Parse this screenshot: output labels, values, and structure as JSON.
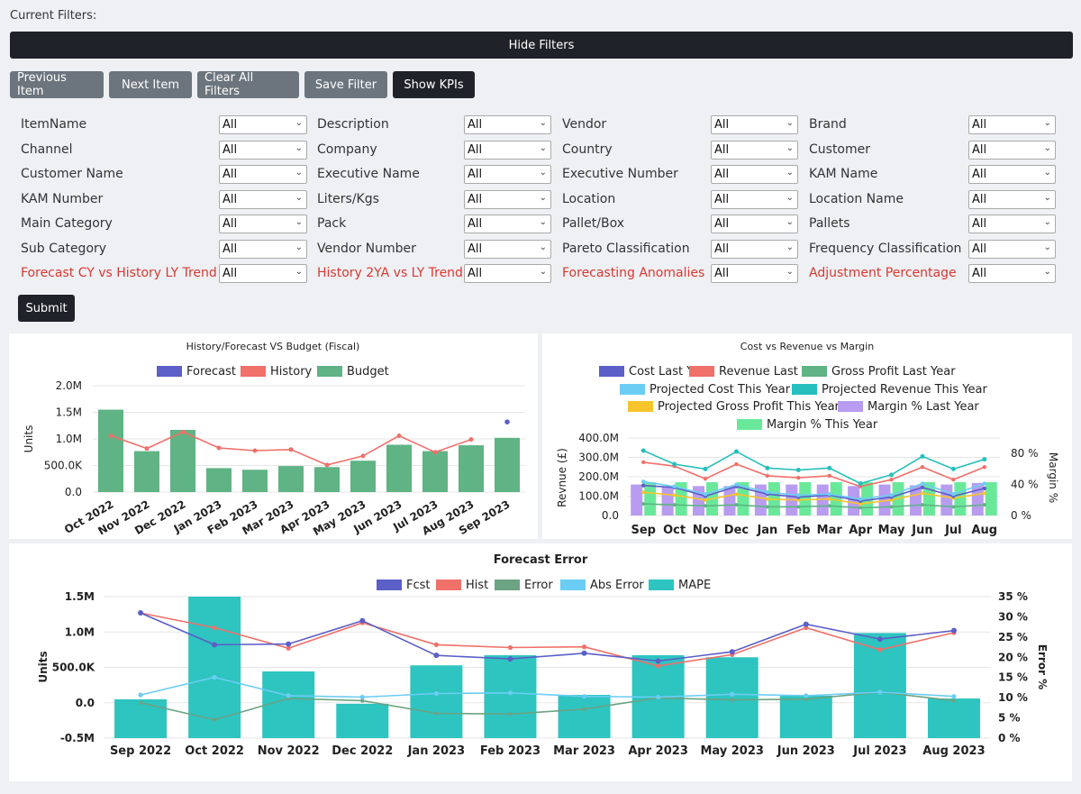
{
  "header": {
    "current_filters": "Current Filters:",
    "hide_filters": "Hide Filters"
  },
  "buttons": {
    "previous": "Previous Item",
    "next": "Next Item",
    "clear": "Clear All Filters",
    "save": "Save Filter",
    "kpis": "Show KPIs",
    "submit": "Submit"
  },
  "filters": [
    {
      "label": "ItemName",
      "value": "All",
      "highlight": false
    },
    {
      "label": "Description",
      "value": "All",
      "highlight": false
    },
    {
      "label": "Vendor",
      "value": "All",
      "highlight": false
    },
    {
      "label": "Brand",
      "value": "All",
      "highlight": false
    },
    {
      "label": "Channel",
      "value": "All",
      "highlight": false
    },
    {
      "label": "Company",
      "value": "All",
      "highlight": false
    },
    {
      "label": "Country",
      "value": "All",
      "highlight": false
    },
    {
      "label": "Customer",
      "value": "All",
      "highlight": false
    },
    {
      "label": "Customer Name",
      "value": "All",
      "highlight": false
    },
    {
      "label": "Executive Name",
      "value": "All",
      "highlight": false
    },
    {
      "label": "Executive Number",
      "value": "All",
      "highlight": false
    },
    {
      "label": "KAM Name",
      "value": "All",
      "highlight": false
    },
    {
      "label": "KAM Number",
      "value": "All",
      "highlight": false
    },
    {
      "label": "Liters/Kgs",
      "value": "All",
      "highlight": false
    },
    {
      "label": "Location",
      "value": "All",
      "highlight": false
    },
    {
      "label": "Location Name",
      "value": "All",
      "highlight": false
    },
    {
      "label": "Main Category",
      "value": "All",
      "highlight": false
    },
    {
      "label": "Pack",
      "value": "All",
      "highlight": false
    },
    {
      "label": "Pallet/Box",
      "value": "All",
      "highlight": false
    },
    {
      "label": "Pallets",
      "value": "All",
      "highlight": false
    },
    {
      "label": "Sub Category",
      "value": "All",
      "highlight": false
    },
    {
      "label": "Vendor Number",
      "value": "All",
      "highlight": false
    },
    {
      "label": "Pareto Classification",
      "value": "All",
      "highlight": false
    },
    {
      "label": "Frequency Classification",
      "value": "All",
      "highlight": false
    },
    {
      "label": "Forecast CY vs History LY Trend",
      "value": "All",
      "highlight": true
    },
    {
      "label": "History 2YA vs LY Trend",
      "value": "All",
      "highlight": true
    },
    {
      "label": "Forecasting Anomalies",
      "value": "All",
      "highlight": true
    },
    {
      "label": "Adjustment Percentage",
      "value": "All",
      "highlight": true
    }
  ],
  "colors": {
    "forecast": "#5b5fc7",
    "history": "#f0706a",
    "budget": "#5fb384",
    "projected_cost": "#6ccdf4",
    "projected_revenue": "#26bfbd",
    "projected_gp": "#f7c52b",
    "margin_ly": "#b89cf0",
    "margin_ty": "#6ae89a",
    "error": "#6ba383",
    "abs_error": "#6ccdf4",
    "mape": "#2ec4c0"
  },
  "chart_data": [
    {
      "type": "bar",
      "title": "History/Forecast VS Budget (Fiscal)",
      "ylabel": "Units",
      "ylim": [
        0,
        2000000
      ],
      "yticks": [
        "0.0",
        "500.0K",
        "1.0M",
        "1.5M",
        "2.0M"
      ],
      "categories": [
        "Oct 2022",
        "Nov 2022",
        "Dec 2022",
        "Jan 2023",
        "Feb 2023",
        "Mar 2023",
        "Apr 2023",
        "May 2023",
        "Jun 2023",
        "Jul 2023",
        "Aug 2023",
        "Sep 2023"
      ],
      "series": [
        {
          "name": "Forecast",
          "kind": "point",
          "values": [
            null,
            null,
            null,
            null,
            null,
            null,
            null,
            null,
            null,
            null,
            null,
            1320000
          ]
        },
        {
          "name": "History",
          "kind": "line",
          "values": [
            1060000,
            820000,
            1130000,
            830000,
            780000,
            800000,
            510000,
            680000,
            1060000,
            750000,
            990000,
            null
          ]
        },
        {
          "name": "Budget",
          "kind": "bar",
          "values": [
            1550000,
            770000,
            1170000,
            450000,
            420000,
            490000,
            470000,
            590000,
            890000,
            770000,
            880000,
            1020000
          ]
        }
      ]
    },
    {
      "type": "bar",
      "title": "Cost vs Revenue vs Margin",
      "ylabel": "Revnue (£)",
      "ylabel_right": "Margin %",
      "ylim": [
        0,
        400000
      ],
      "yticks": [
        "0.0",
        "100.0M",
        "200.0M",
        "300.0M",
        "400.0M"
      ],
      "y2lim": [
        0,
        100
      ],
      "y2ticks": [
        "0 %",
        "40 %",
        "80 %"
      ],
      "categories": [
        "Sep",
        "Oct",
        "Nov",
        "Dec",
        "Jan",
        "Feb",
        "Mar",
        "Apr",
        "May",
        "Jun",
        "Jul",
        "Aug"
      ],
      "series": [
        {
          "name": "Cost Last Year",
          "kind": "line",
          "values": [
            155000,
            145000,
            100000,
            150000,
            110000,
            95000,
            105000,
            75000,
            95000,
            145000,
            100000,
            140000
          ]
        },
        {
          "name": "Revenue Last Year",
          "kind": "line",
          "values": [
            275000,
            255000,
            190000,
            265000,
            205000,
            195000,
            205000,
            150000,
            185000,
            250000,
            185000,
            250000
          ]
        },
        {
          "name": "Gross Profit Last Year",
          "kind": "bar",
          "values": [
            60000,
            55000,
            50000,
            55000,
            45000,
            45000,
            50000,
            40000,
            45000,
            55000,
            45000,
            55000
          ]
        },
        {
          "name": "Projected Cost This Year",
          "kind": "line",
          "values": [
            175000,
            150000,
            110000,
            160000,
            120000,
            105000,
            110000,
            85000,
            105000,
            165000,
            110000,
            165000
          ]
        },
        {
          "name": "Projected Revenue This Year",
          "kind": "line",
          "values": [
            335000,
            265000,
            240000,
            330000,
            245000,
            235000,
            245000,
            165000,
            210000,
            305000,
            240000,
            290000
          ]
        },
        {
          "name": "Projected Gross Profit This Year",
          "kind": "line",
          "values": [
            120000,
            105000,
            80000,
            110000,
            85000,
            80000,
            85000,
            60000,
            80000,
            115000,
            90000,
            115000
          ]
        },
        {
          "name": "Margin % Last Year",
          "kind": "bar",
          "values": [
            40,
            37,
            38,
            38,
            40,
            40,
            40,
            38,
            40,
            39,
            40,
            42
          ]
        },
        {
          "name": "Margin % This Year",
          "kind": "bar",
          "values": [
            43,
            43,
            43,
            43,
            43,
            43,
            43,
            43,
            43,
            43,
            43,
            43
          ]
        }
      ]
    },
    {
      "type": "bar",
      "title": "Forecast Error",
      "ylabel": "Units",
      "ylabel_right": "Error %",
      "ylim": [
        -500000,
        1500000
      ],
      "yticks": [
        "-0.5M",
        "0.0",
        "500.0K",
        "1.0M",
        "1.5M"
      ],
      "y2lim": [
        0,
        35
      ],
      "y2ticks": [
        "0 %",
        "5 %",
        "10 %",
        "15 %",
        "20 %",
        "25 %",
        "30 %",
        "35 %"
      ],
      "categories": [
        "Sep 2022",
        "Oct 2022",
        "Nov 2022",
        "Dec 2022",
        "Jan 2023",
        "Feb 2023",
        "Mar 2023",
        "Apr 2023",
        "May 2023",
        "Jun 2023",
        "Jul 2023",
        "Aug 2023"
      ],
      "series": [
        {
          "name": "Fcst",
          "kind": "line",
          "values": [
            1270000,
            820000,
            830000,
            1160000,
            670000,
            620000,
            700000,
            590000,
            720000,
            1110000,
            900000,
            1020000
          ]
        },
        {
          "name": "Hist",
          "kind": "line",
          "values": [
            1270000,
            1060000,
            770000,
            1130000,
            820000,
            780000,
            790000,
            520000,
            680000,
            1060000,
            750000,
            990000
          ]
        },
        {
          "name": "Error",
          "kind": "line",
          "values": [
            0,
            -240000,
            60000,
            30000,
            -150000,
            -160000,
            -90000,
            70000,
            40000,
            50000,
            150000,
            30000
          ]
        },
        {
          "name": "Abs Error",
          "kind": "line",
          "values": [
            110000,
            360000,
            100000,
            80000,
            130000,
            140000,
            90000,
            80000,
            120000,
            100000,
            150000,
            90000
          ]
        },
        {
          "name": "MAPE",
          "kind": "bar",
          "values": [
            9.6,
            35,
            16.5,
            8.5,
            18,
            20.5,
            10.7,
            20.5,
            20,
            10.5,
            26,
            9.8
          ]
        }
      ]
    }
  ]
}
